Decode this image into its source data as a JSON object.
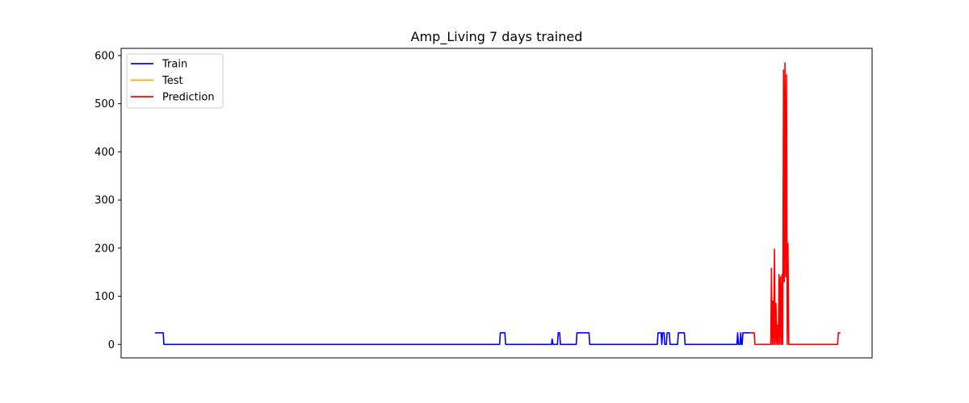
{
  "chart_data": {
    "type": "line",
    "title": "Amp_Living 7 days trained",
    "xlabel": "",
    "ylabel": "",
    "x_ticks_visible": false,
    "xlim": [
      0,
      1000
    ],
    "ylim": [
      -28,
      615
    ],
    "yticks": [
      0,
      100,
      200,
      300,
      400,
      500,
      600
    ],
    "grid": false,
    "legend": {
      "placement": "top-left",
      "entries": [
        "Train",
        "Test",
        "Prediction"
      ]
    },
    "series": [
      {
        "name": "Train",
        "color": "#0000ff",
        "points": [
          [
            45,
            24
          ],
          [
            56,
            24
          ],
          [
            57,
            0
          ],
          [
            504,
            0
          ],
          [
            505,
            24
          ],
          [
            511,
            24
          ],
          [
            512,
            0
          ],
          [
            573,
            0
          ],
          [
            574,
            11
          ],
          [
            575,
            0
          ],
          [
            581,
            0
          ],
          [
            582,
            24
          ],
          [
            584,
            24
          ],
          [
            585,
            0
          ],
          [
            606,
            0
          ],
          [
            607,
            24
          ],
          [
            623,
            24
          ],
          [
            624,
            0
          ],
          [
            714,
            0
          ],
          [
            715,
            24
          ],
          [
            719,
            24
          ],
          [
            720,
            0
          ],
          [
            721,
            24
          ],
          [
            723,
            24
          ],
          [
            724,
            0
          ],
          [
            726,
            0
          ],
          [
            727,
            24
          ],
          [
            730,
            24
          ],
          [
            731,
            0
          ],
          [
            741,
            0
          ],
          [
            742,
            24
          ],
          [
            750,
            24
          ],
          [
            751,
            0
          ],
          [
            820,
            0
          ],
          [
            821,
            24
          ],
          [
            822,
            0
          ],
          [
            824,
            0
          ],
          [
            825,
            24
          ],
          [
            826,
            0
          ],
          [
            827,
            0
          ],
          [
            828,
            24
          ],
          [
            838,
            24
          ]
        ]
      },
      {
        "name": "Test",
        "color": "#ffa500",
        "points": [
          [
            838,
            24
          ],
          [
            843,
            24
          ]
        ]
      },
      {
        "name": "Prediction",
        "color": "#ff0000",
        "points": [
          [
            838,
            24
          ],
          [
            843,
            24
          ],
          [
            844,
            0
          ],
          [
            865,
            0
          ],
          [
            866,
            158
          ],
          [
            867,
            0
          ],
          [
            868,
            90
          ],
          [
            869,
            0
          ],
          [
            870,
            198
          ],
          [
            871,
            0
          ],
          [
            872,
            85
          ],
          [
            873,
            0
          ],
          [
            874,
            40
          ],
          [
            875,
            0
          ],
          [
            876,
            145
          ],
          [
            877,
            0
          ],
          [
            878,
            140
          ],
          [
            879,
            0
          ],
          [
            880,
            145
          ],
          [
            881,
            0
          ],
          [
            882,
            570
          ],
          [
            883,
            130
          ],
          [
            884,
            585
          ],
          [
            885,
            140
          ],
          [
            886,
            560
          ],
          [
            887,
            0
          ],
          [
            888,
            210
          ],
          [
            889,
            0
          ],
          [
            954,
            0
          ],
          [
            955,
            24
          ],
          [
            958,
            24
          ]
        ]
      }
    ]
  }
}
